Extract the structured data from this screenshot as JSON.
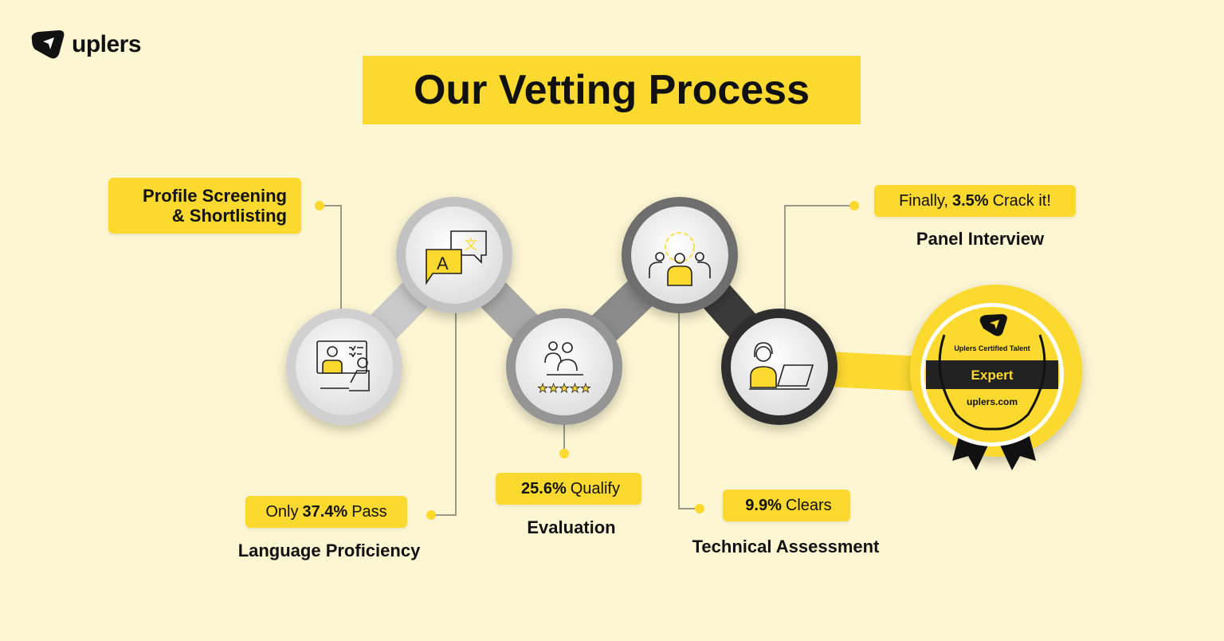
{
  "brand": {
    "name": "uplers"
  },
  "title": "Our Vetting Process",
  "colors": {
    "accent": "#fcd92e",
    "background": "#fdf6d3",
    "dark": "#111111"
  },
  "steps": [
    {
      "name": "Profile Screening",
      "name2": "& Shortlisting",
      "icon": "video-interview-icon"
    },
    {
      "name": "Language Proficiency",
      "stat_pre": "Only",
      "stat": "37.4%",
      "stat_post": "Pass",
      "icon": "translate-chat-icon"
    },
    {
      "name": "Evaluation",
      "stat": "25.6%",
      "stat_post": "Qualify",
      "icon": "rating-stars-icon"
    },
    {
      "name": "Technical Assessment",
      "stat": "9.9%",
      "stat_post": "Clears",
      "icon": "team-gear-icon"
    },
    {
      "name": "Panel Interview",
      "stat_pre": "Finally,",
      "stat": "3.5%",
      "stat_post": "Crack it!",
      "icon": "headset-agent-icon"
    }
  ],
  "badge": {
    "top": "Uplers Certified Talent",
    "label": "Expert",
    "bottom": "uplers.com",
    "icon": "award-badge-icon"
  }
}
